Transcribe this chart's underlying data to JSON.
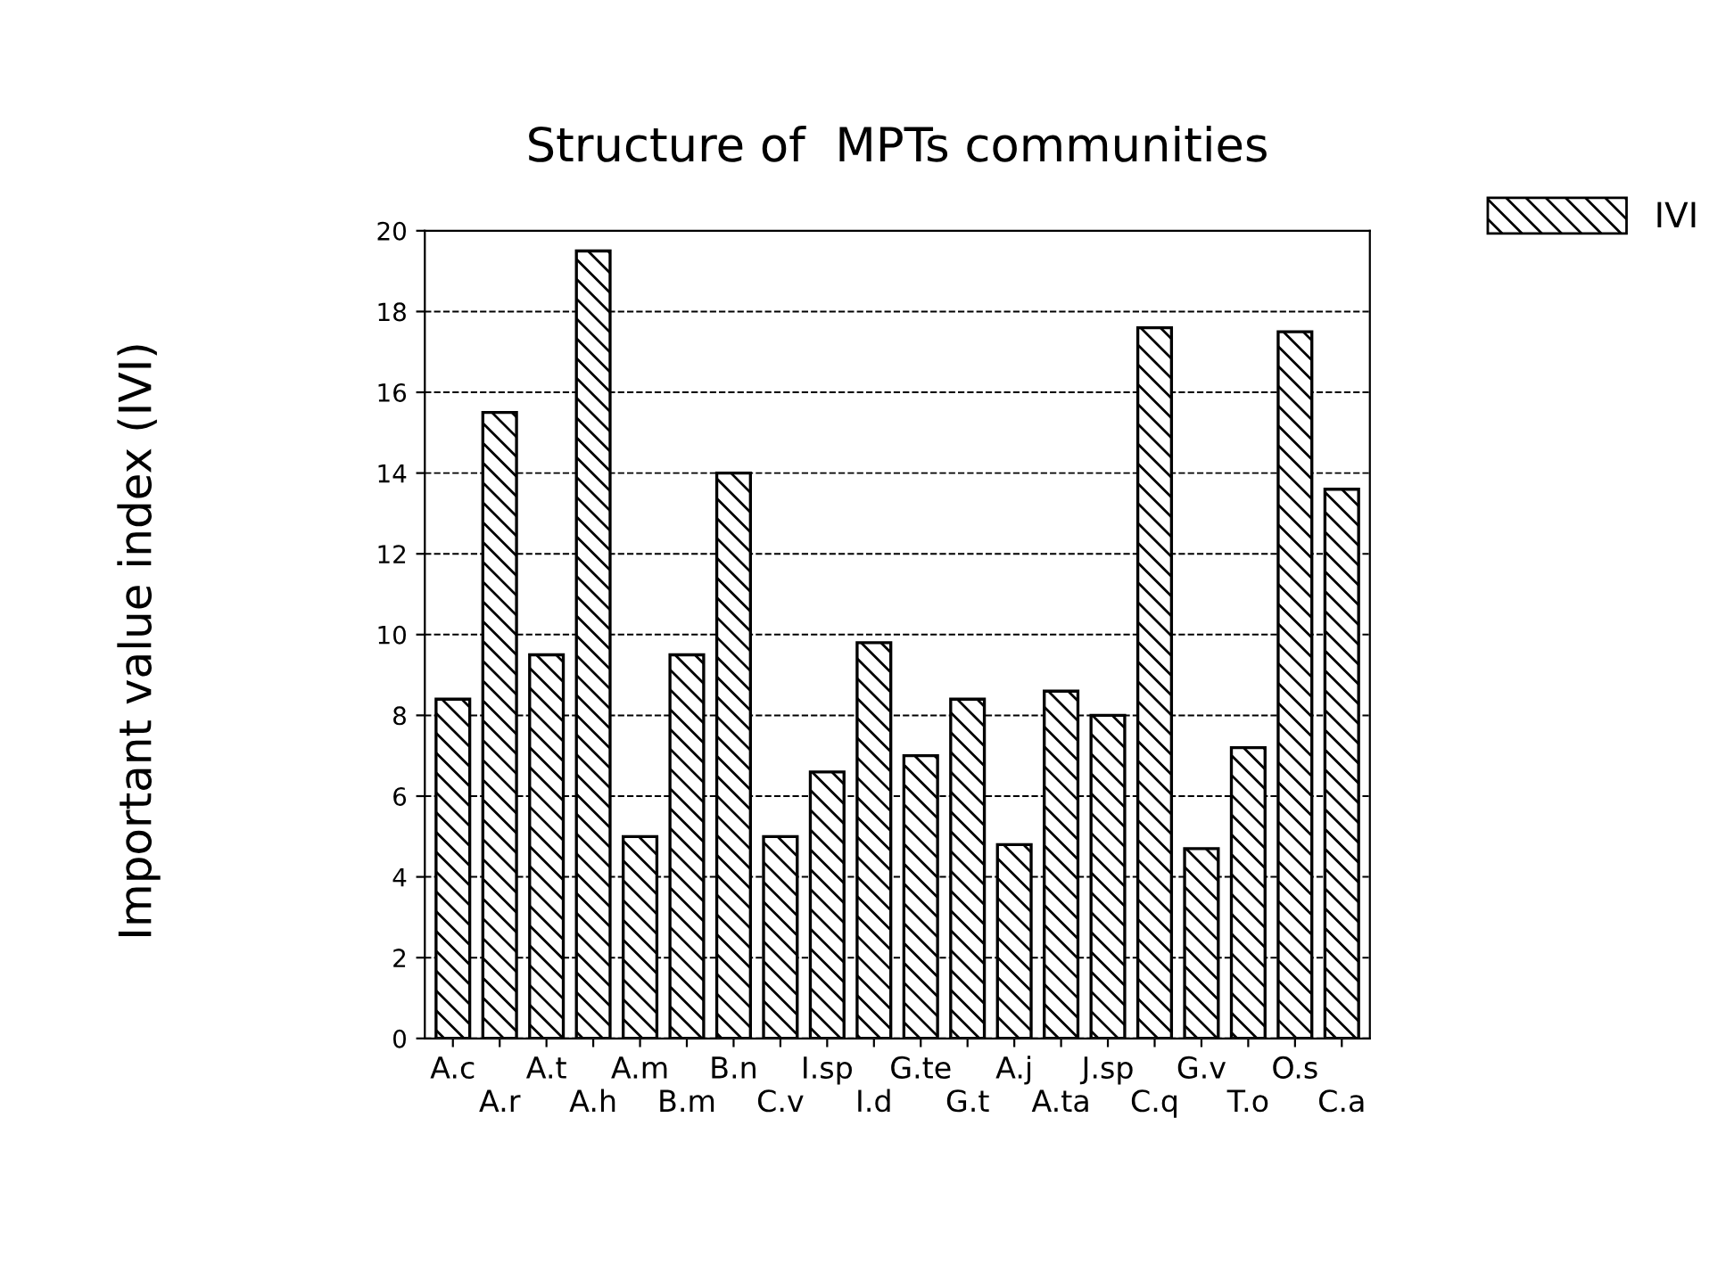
{
  "chart_data": {
    "type": "bar",
    "title": "Structure of  MPTs communities",
    "ylabel": "Important value index (IVI)",
    "categories": [
      "A.c",
      "A.r",
      "A.t",
      "A.h",
      "A.m",
      "B.m",
      "B.n",
      "C.v",
      "I.sp",
      "I.d",
      "G.te",
      "G.t",
      "A.j",
      "A.ta",
      "J.sp",
      "C.q",
      "G.v",
      "T.o",
      "O.s",
      "C.a"
    ],
    "series": [
      {
        "name": "IVI",
        "color": "#000000",
        "values": [
          8.4,
          15.5,
          9.5,
          19.5,
          5,
          9.5,
          14,
          5,
          6.6,
          9.8,
          7,
          8.4,
          4.8,
          8.6,
          8,
          17.6,
          4.7,
          7.2,
          17.5,
          13.6
        ]
      }
    ],
    "ylim": [
      0,
      20
    ],
    "yticks": [
      0,
      2,
      4,
      6,
      8,
      10,
      12,
      14,
      16,
      18,
      20
    ],
    "grid": "y",
    "legend": "top right"
  }
}
